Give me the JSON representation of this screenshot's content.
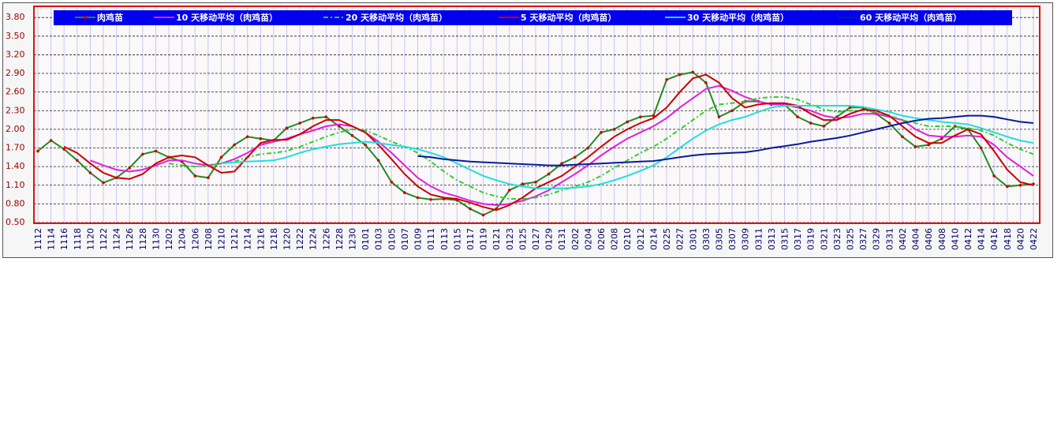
{
  "chart_data": {
    "type": "line",
    "categories": [
      "1112",
      "1114",
      "1116",
      "1118",
      "1120",
      "1122",
      "1124",
      "1126",
      "1128",
      "1130",
      "1202",
      "1204",
      "1206",
      "1208",
      "1210",
      "1212",
      "1214",
      "1216",
      "1218",
      "1220",
      "1222",
      "1224",
      "1226",
      "1228",
      "1230",
      "0101",
      "0103",
      "0105",
      "0107",
      "0109",
      "0111",
      "0113",
      "0115",
      "0117",
      "0119",
      "0121",
      "0123",
      "0125",
      "0127",
      "0129",
      "0131",
      "0202",
      "0204",
      "0206",
      "0208",
      "0210",
      "0212",
      "0214",
      "0225",
      "0227",
      "0301",
      "0303",
      "0305",
      "0307",
      "0309",
      "0311",
      "0313",
      "0315",
      "0317",
      "0319",
      "0321",
      "0323",
      "0325",
      "0327",
      "0329",
      "0331",
      "0402",
      "0404",
      "0406",
      "0408",
      "0410",
      "0412",
      "0414",
      "0416",
      "0418",
      "0420",
      "0422"
    ],
    "ylim": [
      0.5,
      3.98
    ],
    "yticks": [
      {
        "value": 0.5,
        "label": "0.50"
      },
      {
        "value": 0.8,
        "label": "0.80"
      },
      {
        "value": 1.1,
        "label": "1.10"
      },
      {
        "value": 1.4,
        "label": "1.40"
      },
      {
        "value": 1.7,
        "label": "1.70"
      },
      {
        "value": 2.0,
        "label": "2.00"
      },
      {
        "value": 2.3,
        "label": "2.30"
      },
      {
        "value": 2.6,
        "label": "2.60"
      },
      {
        "value": 2.9,
        "label": "2.90"
      },
      {
        "value": 3.2,
        "label": "3.20"
      },
      {
        "value": 3.5,
        "label": "3.50"
      },
      {
        "value": 3.8,
        "label": "3.80"
      }
    ],
    "grid": true,
    "series": [
      {
        "name": "肉鸡苗",
        "color": "#228b22",
        "marker_color": "#cc0000",
        "values": [
          1.65,
          1.82,
          1.68,
          1.5,
          1.3,
          1.14,
          1.22,
          1.38,
          1.6,
          1.65,
          1.55,
          1.48,
          1.25,
          1.22,
          1.55,
          1.75,
          1.88,
          1.85,
          1.82,
          2.02,
          2.1,
          2.18,
          2.2,
          2.05,
          1.9,
          1.75,
          1.5,
          1.15,
          0.98,
          0.9,
          0.87,
          0.88,
          0.86,
          0.72,
          0.62,
          0.72,
          1.02,
          1.12,
          1.15,
          1.28,
          1.45,
          1.55,
          1.7,
          1.95,
          2.0,
          2.12,
          2.2,
          2.22,
          2.8,
          2.88,
          2.92,
          2.75,
          2.2,
          2.3,
          2.45,
          2.45,
          2.4,
          2.4,
          2.2,
          2.1,
          2.05,
          2.2,
          2.35,
          2.35,
          2.25,
          2.1,
          1.88,
          1.72,
          1.75,
          1.85,
          2.05,
          2.0,
          1.7,
          1.25,
          1.08,
          1.1,
          1.12
        ]
      },
      {
        "name": "10 天移动平均（肉鸡苗）",
        "color": "#e020e0",
        "values": [
          null,
          null,
          null,
          null,
          1.5,
          1.42,
          1.35,
          1.32,
          1.35,
          1.42,
          1.5,
          1.5,
          1.45,
          1.42,
          1.45,
          1.52,
          1.62,
          1.75,
          1.8,
          1.85,
          1.92,
          1.98,
          2.05,
          2.08,
          2.05,
          1.95,
          1.8,
          1.62,
          1.42,
          1.22,
          1.08,
          0.98,
          0.92,
          0.85,
          0.8,
          0.78,
          0.8,
          0.85,
          0.92,
          1.02,
          1.15,
          1.28,
          1.42,
          1.58,
          1.72,
          1.85,
          1.95,
          2.05,
          2.18,
          2.35,
          2.5,
          2.65,
          2.7,
          2.62,
          2.52,
          2.45,
          2.4,
          2.4,
          2.35,
          2.3,
          2.22,
          2.18,
          2.2,
          2.25,
          2.25,
          2.2,
          2.15,
          2.0,
          1.9,
          1.88,
          1.88,
          1.9,
          1.88,
          1.75,
          1.55,
          1.4,
          1.25
        ]
      },
      {
        "name": "20 天移动平均（肉鸡苗）",
        "color": "#33cc33",
        "dash": "6,3,2,3",
        "values": [
          null,
          null,
          null,
          null,
          null,
          null,
          null,
          null,
          null,
          null,
          1.45,
          1.42,
          1.4,
          1.42,
          1.45,
          1.48,
          1.55,
          1.6,
          1.62,
          1.65,
          1.72,
          1.8,
          1.88,
          1.95,
          2.0,
          1.98,
          1.9,
          1.8,
          1.72,
          1.62,
          1.48,
          1.32,
          1.18,
          1.08,
          0.98,
          0.92,
          0.88,
          0.88,
          0.9,
          0.95,
          1.02,
          1.08,
          1.15,
          1.25,
          1.38,
          1.5,
          1.62,
          1.72,
          1.85,
          2.0,
          2.15,
          2.3,
          2.4,
          2.42,
          2.45,
          2.5,
          2.52,
          2.52,
          2.48,
          2.4,
          2.32,
          2.28,
          2.3,
          2.3,
          2.28,
          2.22,
          2.15,
          2.1,
          2.05,
          2.05,
          2.05,
          2.02,
          1.98,
          1.9,
          1.78,
          1.68,
          1.6
        ]
      },
      {
        "name": "5 天移动平均（肉鸡苗）",
        "color": "#cc0000",
        "values": [
          null,
          null,
          1.72,
          1.62,
          1.45,
          1.3,
          1.22,
          1.2,
          1.28,
          1.45,
          1.55,
          1.58,
          1.55,
          1.42,
          1.3,
          1.32,
          1.55,
          1.78,
          1.83,
          1.83,
          1.92,
          2.05,
          2.15,
          2.15,
          2.05,
          1.95,
          1.75,
          1.52,
          1.28,
          1.08,
          0.95,
          0.9,
          0.88,
          0.82,
          0.75,
          0.7,
          0.78,
          0.9,
          1.05,
          1.15,
          1.25,
          1.4,
          1.55,
          1.72,
          1.88,
          2.0,
          2.1,
          2.18,
          2.35,
          2.6,
          2.82,
          2.88,
          2.75,
          2.5,
          2.35,
          2.4,
          2.42,
          2.42,
          2.38,
          2.25,
          2.15,
          2.15,
          2.25,
          2.32,
          2.3,
          2.22,
          2.05,
          1.88,
          1.78,
          1.78,
          1.9,
          2.0,
          1.92,
          1.65,
          1.35,
          1.15,
          1.1
        ]
      },
      {
        "name": "30 天移动平均（肉鸡苗）",
        "color": "#22dddd",
        "values": [
          null,
          null,
          null,
          null,
          null,
          null,
          null,
          null,
          null,
          null,
          null,
          null,
          null,
          null,
          1.45,
          1.47,
          1.48,
          1.49,
          1.5,
          1.55,
          1.62,
          1.68,
          1.72,
          1.76,
          1.78,
          1.8,
          1.78,
          1.75,
          1.72,
          1.68,
          1.62,
          1.55,
          1.45,
          1.35,
          1.25,
          1.18,
          1.12,
          1.08,
          1.05,
          1.05,
          1.05,
          1.06,
          1.08,
          1.12,
          1.18,
          1.25,
          1.33,
          1.42,
          1.55,
          1.7,
          1.85,
          1.98,
          2.08,
          2.15,
          2.2,
          2.28,
          2.35,
          2.38,
          2.38,
          2.38,
          2.38,
          2.38,
          2.38,
          2.36,
          2.32,
          2.28,
          2.22,
          2.18,
          2.15,
          2.12,
          2.1,
          2.08,
          2.02,
          1.95,
          1.88,
          1.82,
          1.78
        ]
      },
      {
        "name": "60 天移动平均（肉鸡苗）",
        "color": "#0a1a9a",
        "values": [
          null,
          null,
          null,
          null,
          null,
          null,
          null,
          null,
          null,
          null,
          null,
          null,
          null,
          null,
          null,
          null,
          null,
          null,
          null,
          null,
          null,
          null,
          null,
          null,
          null,
          null,
          null,
          null,
          null,
          1.57,
          1.55,
          1.52,
          1.5,
          1.48,
          1.47,
          1.46,
          1.45,
          1.44,
          1.43,
          1.42,
          1.42,
          1.43,
          1.44,
          1.45,
          1.46,
          1.47,
          1.48,
          1.49,
          1.52,
          1.55,
          1.58,
          1.6,
          1.61,
          1.62,
          1.63,
          1.66,
          1.7,
          1.73,
          1.76,
          1.8,
          1.83,
          1.86,
          1.9,
          1.95,
          2.0,
          2.05,
          2.1,
          2.14,
          2.17,
          2.18,
          2.2,
          2.22,
          2.22,
          2.2,
          2.16,
          2.12,
          2.1
        ]
      }
    ]
  }
}
